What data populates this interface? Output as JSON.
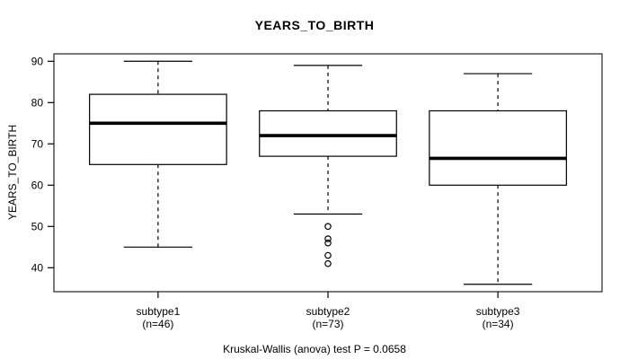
{
  "chart_data": {
    "type": "boxplot",
    "title": "YEARS_TO_BIRTH",
    "ylabel": "YEARS_TO_BIRTH",
    "xlabel": "",
    "ylim": [
      34.2,
      91.8
    ],
    "yticks": [
      40,
      50,
      60,
      70,
      80,
      90
    ],
    "grid": false,
    "legend": "none",
    "groups": [
      {
        "label": "subtype1",
        "sublabel": "(n=46)",
        "n": 46,
        "whisker_low": 45,
        "q1": 65,
        "median": 75,
        "q3": 82,
        "whisker_high": 90,
        "outliers": []
      },
      {
        "label": "subtype2",
        "sublabel": "(n=73)",
        "n": 73,
        "whisker_low": 53,
        "q1": 67,
        "median": 72,
        "q3": 78,
        "whisker_high": 89,
        "outliers": [
          50,
          47,
          46,
          43,
          41
        ]
      },
      {
        "label": "subtype3",
        "sublabel": "(n=34)",
        "n": 34,
        "whisker_low": 36,
        "q1": 60,
        "median": 66.5,
        "q3": 78,
        "whisker_high": 87,
        "outliers": []
      }
    ],
    "stat_test": {
      "name": "Kruskal-Wallis (anova) test",
      "p_value": 0.0658,
      "text": "Kruskal-Wallis (anova) test P = 0.0658"
    },
    "colors": {
      "line": "#000000",
      "box_fill": "#ffffff",
      "frame": "#333333",
      "background": "#ffffff"
    }
  }
}
